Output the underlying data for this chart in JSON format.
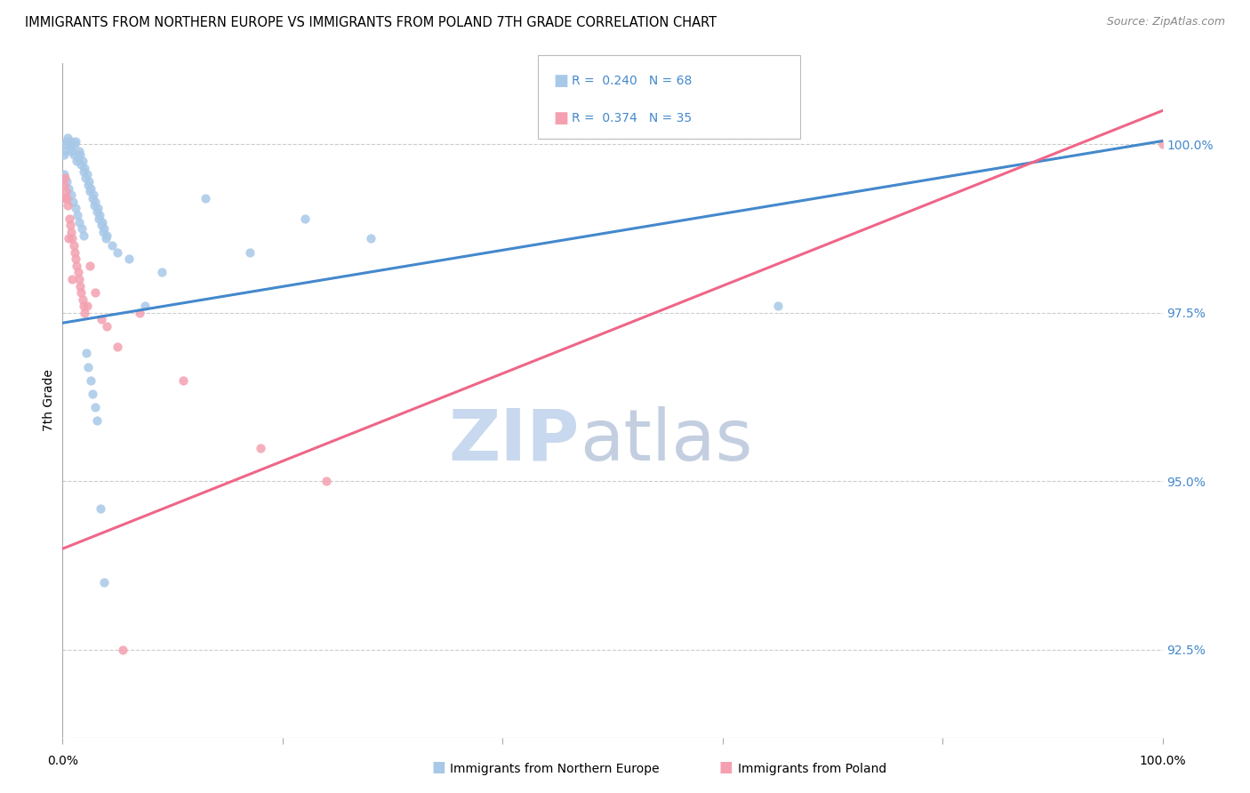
{
  "title": "IMMIGRANTS FROM NORTHERN EUROPE VS IMMIGRANTS FROM POLAND 7TH GRADE CORRELATION CHART",
  "source": "Source: ZipAtlas.com",
  "ylabel": "7th Grade",
  "y_ticks": [
    92.5,
    95.0,
    97.5,
    100.0
  ],
  "y_tick_labels": [
    "92.5%",
    "95.0%",
    "97.5%",
    "100.0%"
  ],
  "legend_label_blue": "Immigrants from Northern Europe",
  "legend_label_pink": "Immigrants from Poland",
  "legend_R_blue": "0.240",
  "legend_N_blue": "68",
  "legend_R_pink": "0.374",
  "legend_N_pink": "35",
  "color_blue": "#a8c8e8",
  "color_pink": "#f4a0b0",
  "color_blue_line": "#4488cc",
  "color_pink_line": "#ee6688",
  "color_blue_tick": "#4488cc",
  "xmin": 0.0,
  "xmax": 100.0,
  "ymin": 91.2,
  "ymax": 101.2,
  "grid_color": "#cccccc",
  "background_color": "#ffffff",
  "blue_trend_x0": 0.0,
  "blue_trend_y0": 97.35,
  "blue_trend_x1": 100.0,
  "blue_trend_y1": 100.05,
  "pink_trend_x0": 0.0,
  "pink_trend_y0": 94.0,
  "pink_trend_x1": 100.0,
  "pink_trend_y1": 100.5,
  "blue_x": [
    0.1,
    0.2,
    0.3,
    0.4,
    0.5,
    0.6,
    0.7,
    0.8,
    0.9,
    1.0,
    1.1,
    1.2,
    1.3,
    1.4,
    1.5,
    1.6,
    1.7,
    1.8,
    1.9,
    2.0,
    2.1,
    2.2,
    2.3,
    2.4,
    2.5,
    2.6,
    2.7,
    2.8,
    2.9,
    3.0,
    3.1,
    3.2,
    3.3,
    3.4,
    3.5,
    3.6,
    3.7,
    3.8,
    3.9,
    4.0,
    4.5,
    5.0,
    6.0,
    7.5,
    9.0,
    13.0,
    17.0,
    22.0,
    28.0,
    65.0,
    0.15,
    0.35,
    0.55,
    0.75,
    0.95,
    1.15,
    1.35,
    1.55,
    1.75,
    1.95,
    2.15,
    2.35,
    2.55,
    2.75,
    2.95,
    3.15,
    3.45,
    3.75
  ],
  "blue_y": [
    99.85,
    99.9,
    100.0,
    100.05,
    100.1,
    100.0,
    99.95,
    100.05,
    99.9,
    99.85,
    100.0,
    100.05,
    99.75,
    99.8,
    99.9,
    99.85,
    99.7,
    99.75,
    99.6,
    99.65,
    99.5,
    99.55,
    99.4,
    99.45,
    99.3,
    99.35,
    99.2,
    99.25,
    99.1,
    99.15,
    99.0,
    99.05,
    98.9,
    98.95,
    98.8,
    98.85,
    98.7,
    98.75,
    98.6,
    98.65,
    98.5,
    98.4,
    98.3,
    97.6,
    98.1,
    99.2,
    98.4,
    98.9,
    98.6,
    97.6,
    99.55,
    99.45,
    99.35,
    99.25,
    99.15,
    99.05,
    98.95,
    98.85,
    98.75,
    98.65,
    96.9,
    96.7,
    96.5,
    96.3,
    96.1,
    95.9,
    94.6,
    93.5
  ],
  "pink_x": [
    0.1,
    0.2,
    0.3,
    0.4,
    0.5,
    0.6,
    0.7,
    0.8,
    0.9,
    1.0,
    1.1,
    1.2,
    1.3,
    1.4,
    1.5,
    1.6,
    1.7,
    1.8,
    1.9,
    2.0,
    2.5,
    3.0,
    3.5,
    4.0,
    5.0,
    7.0,
    11.0,
    18.0,
    24.0,
    100.0,
    0.25,
    0.55,
    0.85,
    2.2,
    5.5
  ],
  "pink_y": [
    99.4,
    99.5,
    99.3,
    99.2,
    99.1,
    98.9,
    98.8,
    98.7,
    98.6,
    98.5,
    98.4,
    98.3,
    98.2,
    98.1,
    98.0,
    97.9,
    97.8,
    97.7,
    97.6,
    97.5,
    98.2,
    97.8,
    97.4,
    97.3,
    97.0,
    97.5,
    96.5,
    95.5,
    95.0,
    100.0,
    99.2,
    98.6,
    98.0,
    97.6,
    92.5
  ]
}
